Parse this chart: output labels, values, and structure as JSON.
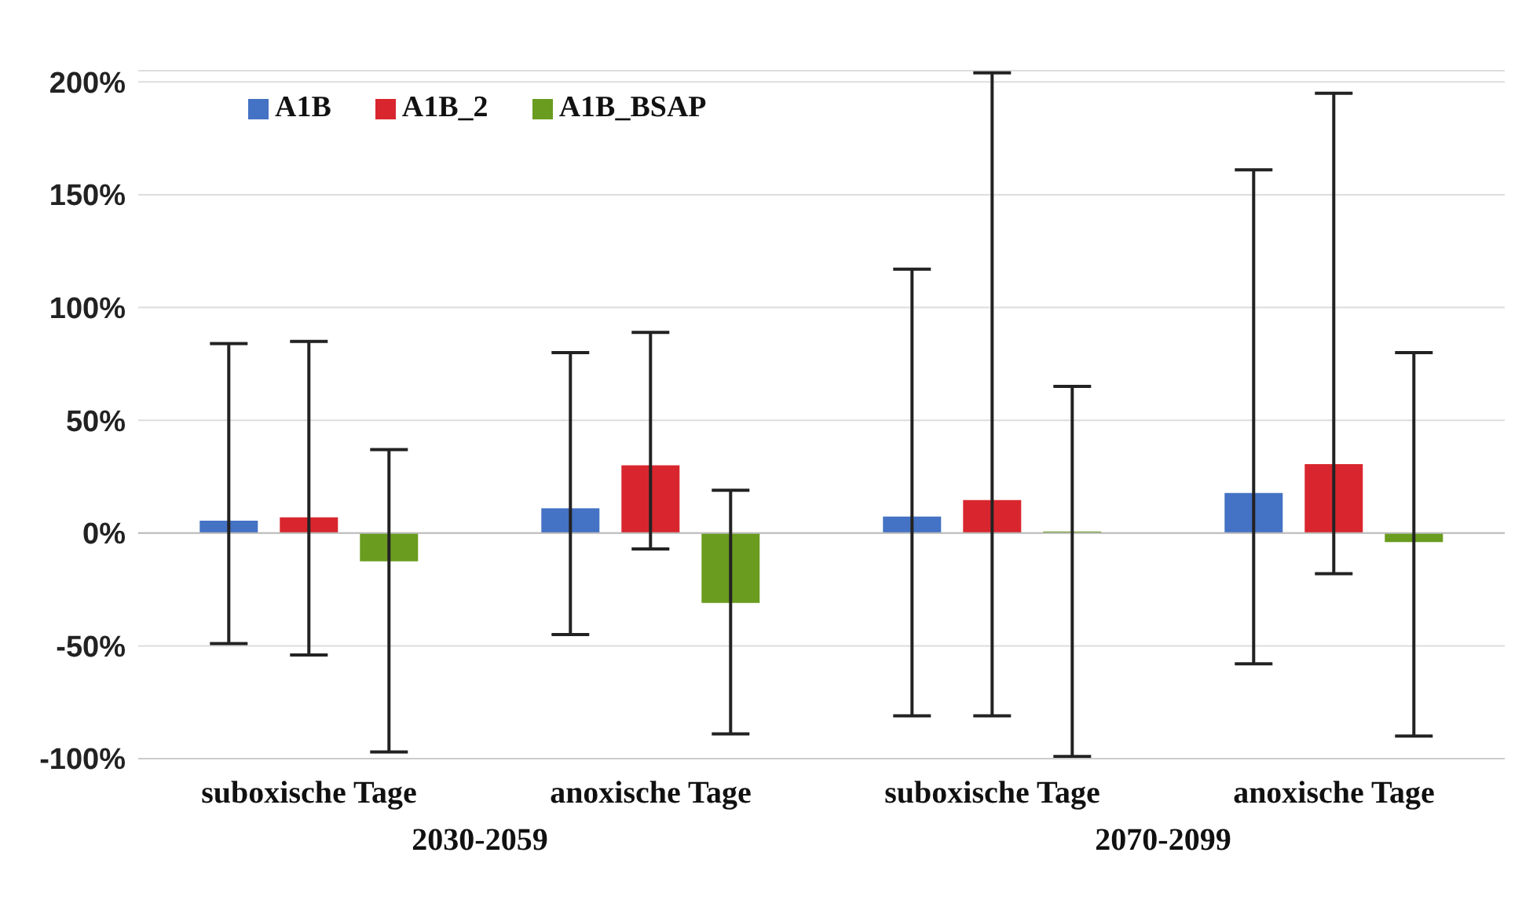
{
  "chart_data": {
    "type": "bar",
    "categories": [
      "suboxische Tage",
      "anoxische Tage",
      "suboxische Tage",
      "anoxische Tage"
    ],
    "series": [
      {
        "name": "A1B",
        "color": "#4472c4",
        "values": [
          5.5,
          11,
          7.3,
          17.8
        ],
        "errors": [
          [
            -49,
            84
          ],
          [
            -45,
            80
          ],
          [
            -81,
            117
          ],
          [
            -58,
            161
          ]
        ]
      },
      {
        "name": "A1B_2",
        "color": "#d9262e",
        "values": [
          7,
          30,
          14.6,
          30.6
        ],
        "errors": [
          [
            -54,
            85
          ],
          [
            -7,
            89
          ],
          [
            -81,
            204
          ],
          [
            -18,
            195
          ]
        ]
      },
      {
        "name": "A1B_BSAP",
        "color": "#6a9c1f",
        "values": [
          -12.5,
          -31,
          0,
          -4
        ],
        "errors": [
          [
            -97,
            37
          ],
          [
            -89,
            19
          ],
          [
            -99,
            65
          ],
          [
            -90,
            80
          ]
        ]
      }
    ],
    "annotations": [
      "2030-2059",
      "2070-2099"
    ],
    "ylim": [
      -100,
      205
    ],
    "yticks": [
      {
        "value": -100,
        "label": "-100%"
      },
      {
        "value": -50,
        "label": "-50%"
      },
      {
        "value": 0,
        "label": "0%"
      },
      {
        "value": 50,
        "label": "50%"
      },
      {
        "value": 100,
        "label": "100%"
      },
      {
        "value": 150,
        "label": "150%"
      },
      {
        "value": 200,
        "label": "200%"
      }
    ],
    "grid": "y",
    "legend": "top left"
  }
}
